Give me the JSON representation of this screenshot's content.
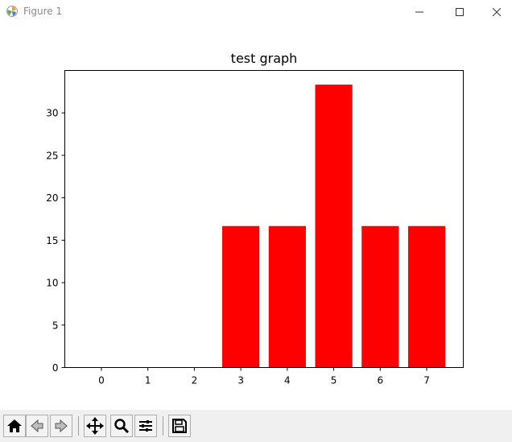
{
  "window": {
    "title": "Figure 1",
    "controls": [
      "minimize-icon",
      "maximize-icon",
      "close-icon"
    ]
  },
  "toolbar": {
    "buttons": [
      {
        "icon": "home-icon",
        "name": "home-button"
      },
      {
        "icon": "back-arrow-icon",
        "name": "back-button"
      },
      {
        "icon": "forward-arrow-icon",
        "name": "forward-button"
      },
      {
        "icon": "pan-icon",
        "name": "pan-button"
      },
      {
        "icon": "zoom-icon",
        "name": "zoom-button"
      },
      {
        "icon": "configure-subplots-icon",
        "name": "subplots-button"
      },
      {
        "icon": "save-icon",
        "name": "save-button"
      }
    ]
  },
  "chart_data": {
    "type": "bar",
    "title": "test graph",
    "xlabel": "",
    "ylabel": "",
    "categories": [
      "0",
      "1",
      "2",
      "3",
      "4",
      "5",
      "6",
      "7"
    ],
    "values": [
      0,
      0,
      0,
      16.67,
      16.67,
      33.33,
      16.67,
      16.67
    ],
    "ylim": [
      0,
      35
    ],
    "yticks": [
      0,
      5,
      10,
      15,
      20,
      25,
      30
    ],
    "bar_color": "#ff0000",
    "grid": false
  }
}
